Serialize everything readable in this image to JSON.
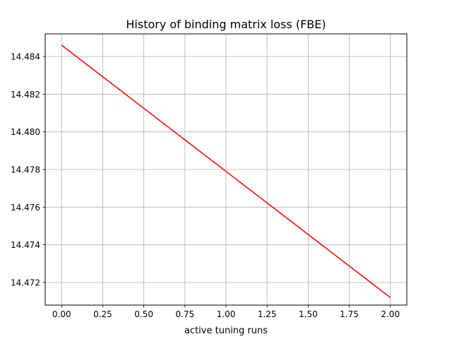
{
  "chart_data": {
    "type": "line",
    "title": "History of binding matrix loss (FBE)",
    "xlabel": "active tuning runs",
    "ylabel": "",
    "grid": true,
    "xlim": [
      -0.1,
      2.1
    ],
    "ylim": [
      14.4708,
      14.4852
    ],
    "x_ticks": [
      0.0,
      0.25,
      0.5,
      0.75,
      1.0,
      1.25,
      1.5,
      1.75,
      2.0
    ],
    "x_tick_labels": [
      "0.00",
      "0.25",
      "0.50",
      "0.75",
      "1.00",
      "1.25",
      "1.50",
      "1.75",
      "2.00"
    ],
    "y_ticks": [
      14.472,
      14.474,
      14.476,
      14.478,
      14.48,
      14.482,
      14.484
    ],
    "y_tick_labels": [
      "14.472",
      "14.474",
      "14.476",
      "14.478",
      "14.480",
      "14.482",
      "14.484"
    ],
    "series": [
      {
        "color": "#ff0000",
        "x": [
          0,
          1,
          2
        ],
        "y": [
          14.4846,
          14.4779,
          14.4712
        ]
      }
    ]
  }
}
